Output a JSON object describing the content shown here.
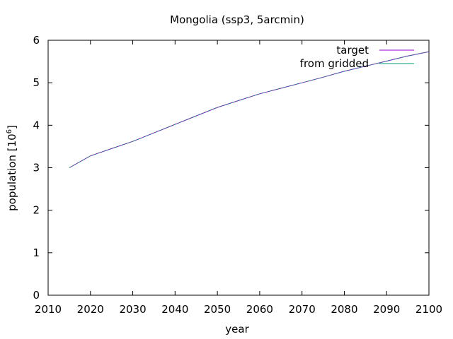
{
  "chart_data": {
    "type": "line",
    "title": "Mongolia (ssp3, 5arcmin)",
    "xlabel": "year",
    "ylabel": "population [10",
    "ylabel_sup": "6",
    "ylabel_end": "]",
    "xlim": [
      2010,
      2100
    ],
    "ylim": [
      0,
      6
    ],
    "xticks": [
      "2010",
      "2020",
      "2030",
      "2040",
      "2050",
      "2060",
      "2070",
      "2080",
      "2090",
      "2100"
    ],
    "yticks": [
      "0",
      "1",
      "2",
      "3",
      "4",
      "5",
      "6"
    ],
    "grid": false,
    "legend_position": "top-right",
    "series": [
      {
        "name": "target",
        "color": "#9400d3",
        "x": [
          2015,
          2020,
          2025,
          2030,
          2035,
          2040,
          2045,
          2050,
          2055,
          2060,
          2065,
          2070,
          2075,
          2080,
          2085,
          2090,
          2095,
          2100
        ],
        "y": [
          3.0,
          3.28,
          3.45,
          3.62,
          3.82,
          4.02,
          4.22,
          4.42,
          4.58,
          4.74,
          4.87,
          5.0,
          5.13,
          5.27,
          5.39,
          5.51,
          5.63,
          5.73
        ]
      },
      {
        "name": "from gridded",
        "color": "#009e73",
        "x": [
          2015,
          2020,
          2025,
          2030,
          2035,
          2040,
          2045,
          2050,
          2055,
          2060,
          2065,
          2070,
          2075,
          2080,
          2085,
          2090,
          2095,
          2100
        ],
        "y": [
          3.0,
          3.28,
          3.45,
          3.62,
          3.82,
          4.02,
          4.22,
          4.42,
          4.58,
          4.74,
          4.87,
          5.0,
          5.13,
          5.27,
          5.39,
          5.51,
          5.63,
          5.73
        ]
      }
    ]
  }
}
